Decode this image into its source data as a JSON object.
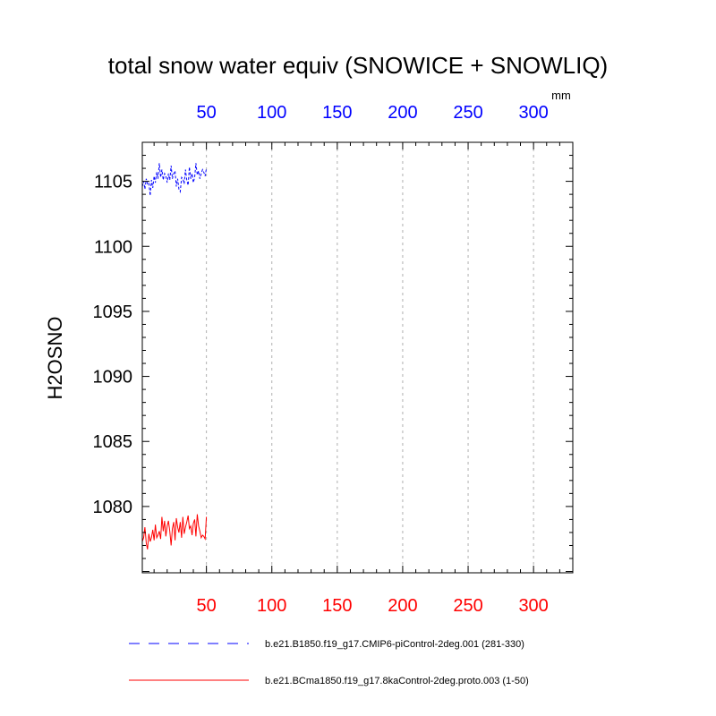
{
  "chart_data": {
    "type": "line",
    "title": "total snow water equiv (SNOWICE + SNOWLIQ)",
    "units": "mm",
    "ylabel": "H2OSNO",
    "xlabel": "",
    "xlim": [
      1,
      330
    ],
    "ylim": [
      1074.9,
      1108
    ],
    "x_major_ticks": [
      50,
      100,
      150,
      200,
      250,
      300
    ],
    "x_tick_labels": [
      "50",
      "100",
      "150",
      "200",
      "250",
      "300"
    ],
    "y_major_ticks": [
      1080,
      1085,
      1090,
      1095,
      1100,
      1105
    ],
    "y_tick_labels": [
      "1080",
      "1085",
      "1090",
      "1095",
      "1100",
      "1105"
    ],
    "grid": "vertical dashed at x ticks",
    "top_axis_color": "#0000ff",
    "bottom_axis_color": "#ff0000",
    "legend_position": "bottom",
    "series": [
      {
        "name": "b.e21.B1850.f19_g17.CMIP6-piControl-2deg.001 (281-330)",
        "color": "#0000ff",
        "dash": "dashed",
        "axis": "top",
        "x": [
          1,
          2,
          3,
          4,
          5,
          6,
          7,
          8,
          9,
          10,
          11,
          12,
          13,
          14,
          15,
          16,
          17,
          18,
          19,
          20,
          21,
          22,
          23,
          24,
          25,
          26,
          27,
          28,
          29,
          30,
          31,
          32,
          33,
          34,
          35,
          36,
          37,
          38,
          39,
          40,
          41,
          42,
          43,
          44,
          45,
          46,
          47,
          48,
          49,
          50
        ],
        "values": [
          1104.6,
          1105.0,
          1104.4,
          1105.2,
          1104.8,
          1104.9,
          1103.9,
          1105.1,
          1104.5,
          1105.4,
          1104.9,
          1105.7,
          1105.2,
          1106.4,
          1105.3,
          1105.9,
          1105.1,
          1105.6,
          1105.4,
          1104.9,
          1105.6,
          1105.1,
          1106.2,
          1105.2,
          1105.6,
          1105.8,
          1104.6,
          1105.2,
          1104.4,
          1104.2,
          1105.3,
          1105.2,
          1104.8,
          1105.9,
          1105.1,
          1104.7,
          1106.1,
          1105.2,
          1105.6,
          1104.9,
          1105.3,
          1106.4,
          1105.5,
          1105.8,
          1105.2,
          1105.6,
          1105.9,
          1105.7,
          1105.4,
          1106.0
        ]
      },
      {
        "name": "b.e21.BCma1850.f19_g17.8kaControl-2deg.proto.003 (1-50)",
        "color": "#ff0000",
        "dash": "solid",
        "axis": "bottom",
        "x": [
          1,
          2,
          3,
          4,
          5,
          6,
          7,
          8,
          9,
          10,
          11,
          12,
          13,
          14,
          15,
          16,
          17,
          18,
          19,
          20,
          21,
          22,
          23,
          24,
          25,
          26,
          27,
          28,
          29,
          30,
          31,
          32,
          33,
          34,
          35,
          36,
          37,
          38,
          39,
          40,
          41,
          42,
          43,
          44,
          45,
          46,
          47,
          48,
          49,
          50
        ],
        "values": [
          1077.3,
          1077.6,
          1078.4,
          1077.2,
          1076.7,
          1077.9,
          1077.3,
          1077.6,
          1078.2,
          1077.4,
          1078.6,
          1077.6,
          1077.8,
          1078.1,
          1077.5,
          1079.2,
          1078.1,
          1078.9,
          1077.7,
          1078.5,
          1078.9,
          1078.1,
          1077.0,
          1078.3,
          1078.8,
          1077.4,
          1079.1,
          1078.4,
          1078.0,
          1078.8,
          1077.6,
          1079.2,
          1077.9,
          1078.4,
          1078.8,
          1079.3,
          1078.3,
          1078.5,
          1077.8,
          1078.7,
          1079.0,
          1077.7,
          1079.4,
          1078.5,
          1078.1,
          1077.6,
          1077.8,
          1077.7,
          1077.5,
          1079.2
        ]
      }
    ]
  }
}
